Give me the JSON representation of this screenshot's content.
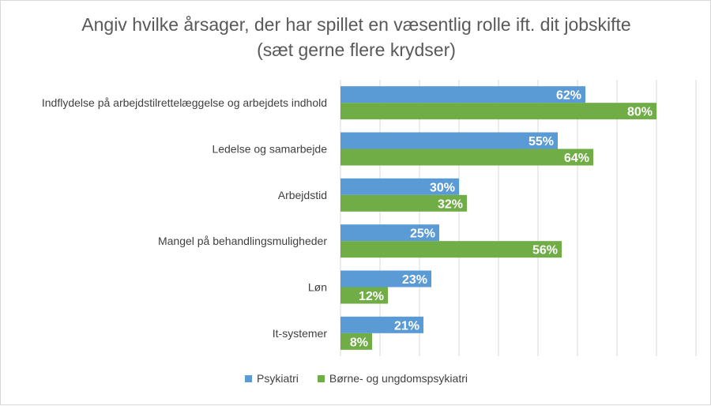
{
  "chart_data": {
    "type": "bar",
    "orientation": "horizontal",
    "title": "Angiv hvilke årsager, der har spillet en væsentlig rolle ift. dit jobskifte (sæt gerne flere krydser)",
    "categories": [
      "Indflydelse på arbejdstilrettelæggelse og arbejdets indhold",
      "Ledelse og samarbejde",
      "Arbejdstid",
      "Mangel på behandlingsmuligheder",
      "Løn",
      "It-systemer"
    ],
    "series": [
      {
        "name": "Psykiatri",
        "color": "#5b9bd5",
        "values": [
          62,
          55,
          30,
          25,
          23,
          21
        ],
        "labels": [
          "62%",
          "55%",
          "30%",
          "25%",
          "23%",
          "21%"
        ]
      },
      {
        "name": "Børne- og ungdomspsykiatri",
        "color": "#70ad47",
        "values": [
          80,
          64,
          32,
          56,
          12,
          8
        ],
        "labels": [
          "80%",
          "64%",
          "32%",
          "56%",
          "12%",
          "8%"
        ]
      }
    ],
    "xlim": [
      0,
      90
    ],
    "grid": true,
    "legend": "bottom"
  }
}
